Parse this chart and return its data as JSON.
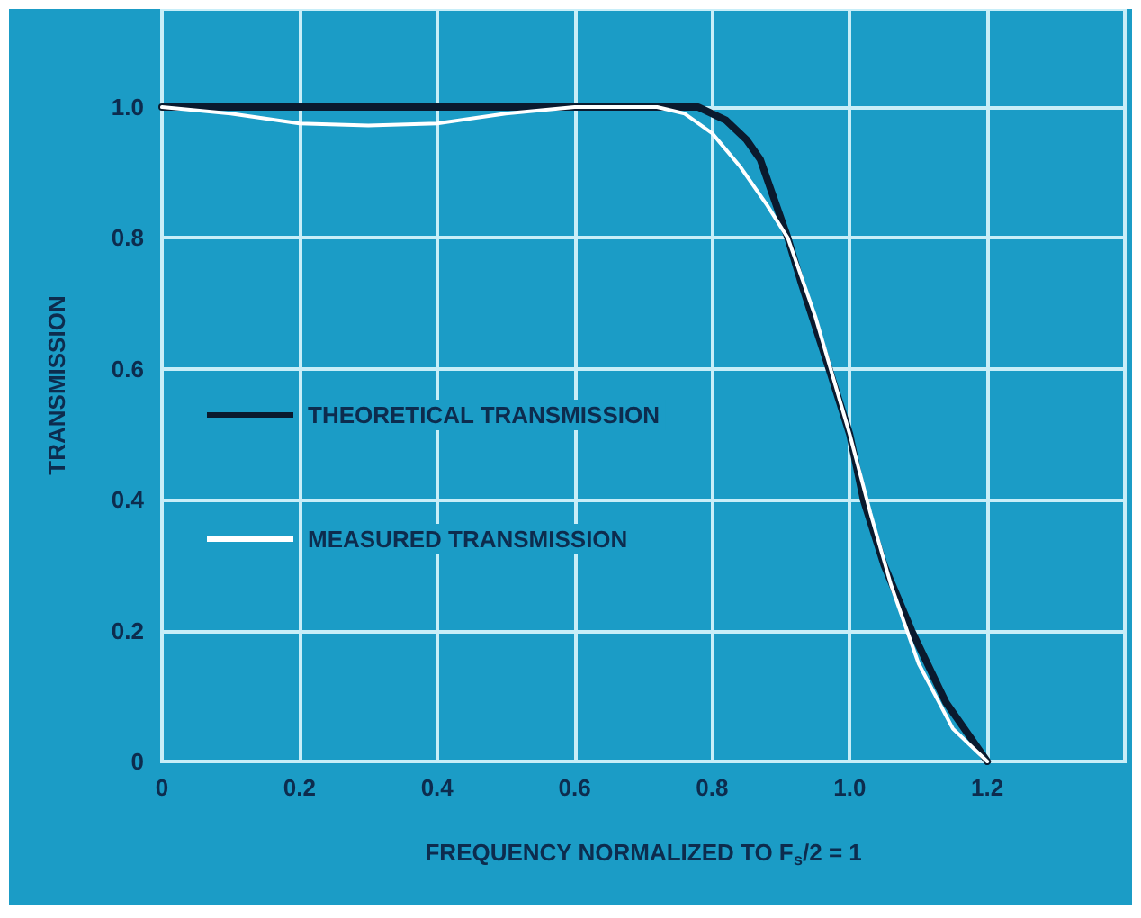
{
  "chart_data": {
    "type": "line",
    "xlabel": "FREQUENCY NORMALIZED TO F$_{s}$/2 = 1",
    "ylabel": "TRANSMISSION",
    "series": [
      {
        "name": "THEORETICAL TRANSMISSION",
        "color": "#0a1a2e",
        "x": [
          0,
          0.78,
          0.82,
          0.85,
          0.87,
          0.89,
          0.91,
          0.93,
          0.97,
          1.0,
          1.02,
          1.05,
          1.09,
          1.14,
          1.2
        ],
        "values": [
          1.0,
          1.0,
          0.98,
          0.95,
          0.92,
          0.86,
          0.8,
          0.73,
          0.6,
          0.5,
          0.4,
          0.3,
          0.2,
          0.09,
          0.0
        ]
      },
      {
        "name": "MEASURED TRANSMISSION",
        "color": "#ffffff",
        "x": [
          0,
          0.1,
          0.2,
          0.3,
          0.4,
          0.5,
          0.6,
          0.72,
          0.76,
          0.8,
          0.84,
          0.88,
          0.91,
          0.95,
          1.0,
          1.03,
          1.06,
          1.1,
          1.15,
          1.2
        ],
        "values": [
          1.0,
          0.99,
          0.975,
          0.972,
          0.975,
          0.99,
          1.0,
          1.0,
          0.99,
          0.96,
          0.91,
          0.85,
          0.8,
          0.68,
          0.5,
          0.38,
          0.27,
          0.15,
          0.05,
          0.0
        ]
      }
    ],
    "xlim": [
      0,
      1.4
    ],
    "xticks": [
      0,
      0.2,
      0.4,
      0.6,
      0.8,
      {
        "value": 1.0,
        "label": "1.0"
      },
      1.2
    ],
    "ylim": [
      0,
      1.15
    ],
    "yticks": [
      0,
      0.2,
      0.4,
      0.6,
      0.8,
      {
        "value": 1.0,
        "label": "1.0"
      }
    ],
    "grid": true,
    "legend": "left",
    "marker": "none",
    "line_style": "solid"
  }
}
